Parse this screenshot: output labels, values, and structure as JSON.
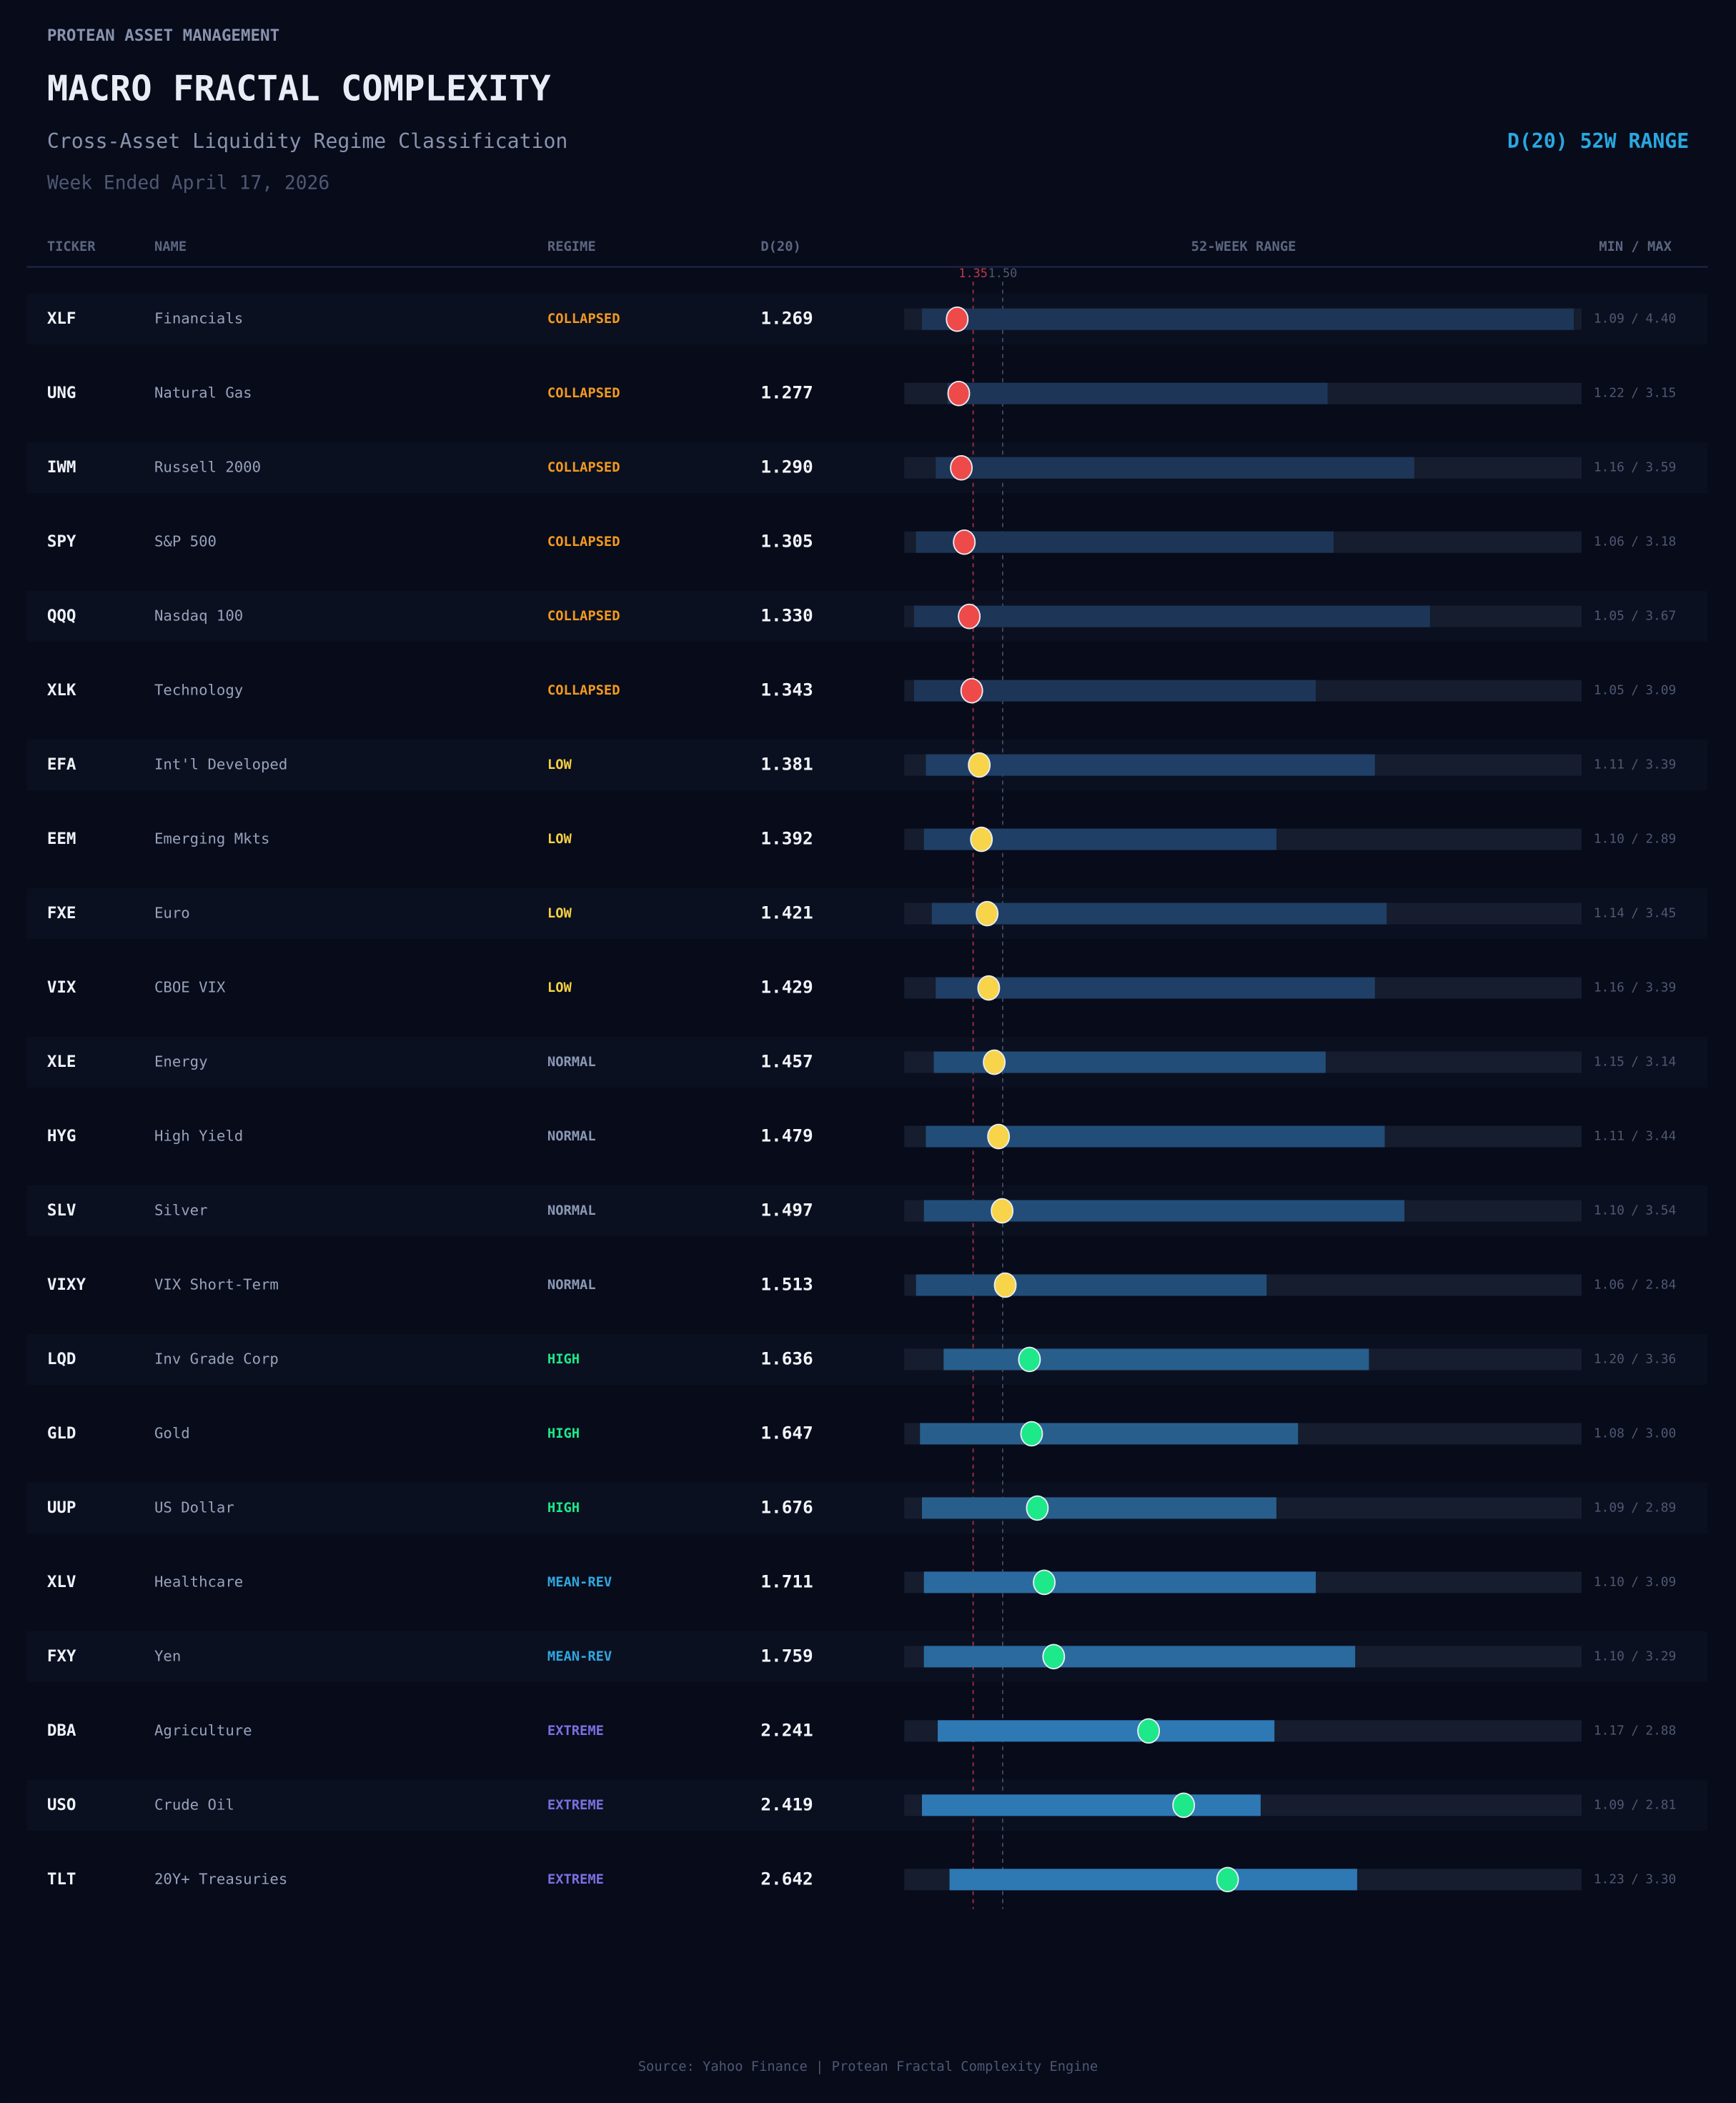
{
  "header": {
    "brand": "PROTEAN ASSET MANAGEMENT",
    "title": "MACRO FRACTAL COMPLEXITY",
    "subtitle": "Cross-Asset Liquidity Regime Classification",
    "date": "Week Ended April 17, 2026",
    "badge": "D(20) 52W RANGE"
  },
  "columns": [
    "TICKER",
    "NAME",
    "REGIME",
    "D(20)",
    "52-WEEK RANGE",
    "MIN / MAX"
  ],
  "range_separator": "/",
  "chart_data": {
    "type": "range-dot",
    "xlim": [
      1.0,
      4.44
    ],
    "xticks": [
      1.35,
      {
        "value": 1.5,
        "label": "1.50"
      }
    ],
    "tick_colors": [
      "#c0394a",
      "#4f5872"
    ],
    "track_color": "#151d2e",
    "regimes": {
      "COLLAPSED": {
        "color": "#f39a1e",
        "dot": "#ef4a4a",
        "bar": "#1d3657"
      },
      "LOW": {
        "color": "#f5d142",
        "dot": "#f7d44a",
        "bar": "#1f3f66"
      },
      "NORMAL": {
        "color": "#8a98b5",
        "dot": "#f7d44a",
        "bar": "#224d78"
      },
      "HIGH": {
        "color": "#1de88a",
        "dot": "#1de88a",
        "bar": "#275e8c"
      },
      "MEAN-REV": {
        "color": "#2fa8e0",
        "dot": "#1de88a",
        "bar": "#2a6a9f"
      },
      "EXTREME": {
        "color": "#7b6fe0",
        "dot": "#1de88a",
        "bar": "#2e78b4"
      }
    },
    "rows": [
      {
        "ticker": "XLF",
        "name": "Financials",
        "regime": "COLLAPSED",
        "d20": "1.269",
        "min": "1.09",
        "max": "4.40"
      },
      {
        "ticker": "UNG",
        "name": "Natural Gas",
        "regime": "COLLAPSED",
        "d20": "1.277",
        "min": "1.22",
        "max": "3.15"
      },
      {
        "ticker": "IWM",
        "name": "Russell 2000",
        "regime": "COLLAPSED",
        "d20": "1.290",
        "min": "1.16",
        "max": "3.59"
      },
      {
        "ticker": "SPY",
        "name": "S&P 500",
        "regime": "COLLAPSED",
        "d20": "1.305",
        "min": "1.06",
        "max": "3.18"
      },
      {
        "ticker": "QQQ",
        "name": "Nasdaq 100",
        "regime": "COLLAPSED",
        "d20": "1.330",
        "min": "1.05",
        "max": "3.67"
      },
      {
        "ticker": "XLK",
        "name": "Technology",
        "regime": "COLLAPSED",
        "d20": "1.343",
        "min": "1.05",
        "max": "3.09"
      },
      {
        "ticker": "EFA",
        "name": "Int'l Developed",
        "regime": "LOW",
        "d20": "1.381",
        "min": "1.11",
        "max": "3.39"
      },
      {
        "ticker": "EEM",
        "name": "Emerging Mkts",
        "regime": "LOW",
        "d20": "1.392",
        "min": "1.10",
        "max": "2.89"
      },
      {
        "ticker": "FXE",
        "name": "Euro",
        "regime": "LOW",
        "d20": "1.421",
        "min": "1.14",
        "max": "3.45"
      },
      {
        "ticker": "VIX",
        "name": "CBOE VIX",
        "regime": "LOW",
        "d20": "1.429",
        "min": "1.16",
        "max": "3.39"
      },
      {
        "ticker": "XLE",
        "name": "Energy",
        "regime": "NORMAL",
        "d20": "1.457",
        "min": "1.15",
        "max": "3.14"
      },
      {
        "ticker": "HYG",
        "name": "High Yield",
        "regime": "NORMAL",
        "d20": "1.479",
        "min": "1.11",
        "max": "3.44"
      },
      {
        "ticker": "SLV",
        "name": "Silver",
        "regime": "NORMAL",
        "d20": "1.497",
        "min": "1.10",
        "max": "3.54"
      },
      {
        "ticker": "VIXY",
        "name": "VIX Short-Term",
        "regime": "NORMAL",
        "d20": "1.513",
        "min": "1.06",
        "max": "2.84"
      },
      {
        "ticker": "LQD",
        "name": "Inv Grade Corp",
        "regime": "HIGH",
        "d20": "1.636",
        "min": "1.20",
        "max": "3.36"
      },
      {
        "ticker": "GLD",
        "name": "Gold",
        "regime": "HIGH",
        "d20": "1.647",
        "min": "1.08",
        "max": "3.00"
      },
      {
        "ticker": "UUP",
        "name": "US Dollar",
        "regime": "HIGH",
        "d20": "1.676",
        "min": "1.09",
        "max": "2.89"
      },
      {
        "ticker": "XLV",
        "name": "Healthcare",
        "regime": "MEAN-REV",
        "d20": "1.711",
        "min": "1.10",
        "max": "3.09"
      },
      {
        "ticker": "FXY",
        "name": "Yen",
        "regime": "MEAN-REV",
        "d20": "1.759",
        "min": "1.10",
        "max": "3.29"
      },
      {
        "ticker": "DBA",
        "name": "Agriculture",
        "regime": "EXTREME",
        "d20": "2.241",
        "min": "1.17",
        "max": "2.88"
      },
      {
        "ticker": "USO",
        "name": "Crude Oil",
        "regime": "EXTREME",
        "d20": "2.419",
        "min": "1.09",
        "max": "2.81"
      },
      {
        "ticker": "TLT",
        "name": "20Y+ Treasuries",
        "regime": "EXTREME",
        "d20": "2.642",
        "min": "1.23",
        "max": "3.30"
      }
    ]
  },
  "footer": "Source: Yahoo Finance | Protean Fractal Complexity Engine"
}
